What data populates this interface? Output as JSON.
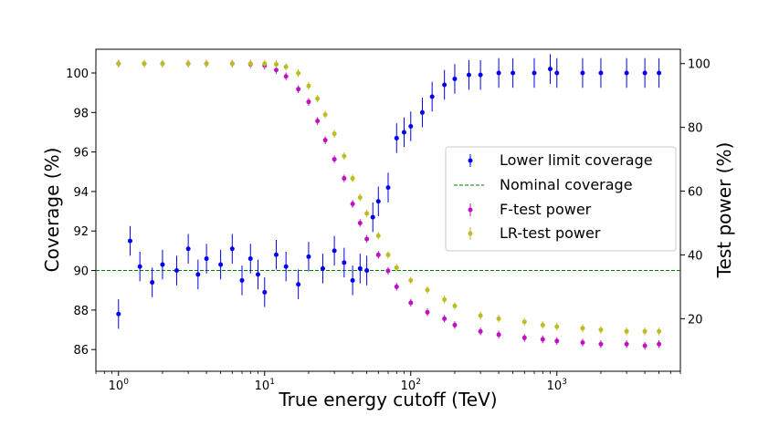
{
  "chart_data": {
    "type": "scatter",
    "xlabel": "True energy cutoff (TeV)",
    "ylabel": "Coverage (%)",
    "y2label": "Test power (%)",
    "xscale": "log",
    "xlim": [
      0.7,
      7000
    ],
    "ylim": [
      84.9,
      101.2
    ],
    "y2lim": [
      3.5,
      104.5
    ],
    "x_ticks": [
      {
        "value": 1,
        "base": "10",
        "exp": "0"
      },
      {
        "value": 10,
        "base": "10",
        "exp": "1"
      },
      {
        "value": 100,
        "base": "10",
        "exp": "2"
      },
      {
        "value": 1000,
        "base": "10",
        "exp": "3"
      }
    ],
    "y_ticks": [
      86,
      88,
      90,
      92,
      94,
      96,
      98,
      100
    ],
    "y_tick_labels": [
      "86",
      "88",
      "90",
      "92",
      "94",
      "96",
      "98",
      "100"
    ],
    "y2_ticks": [
      20,
      40,
      60,
      80,
      100
    ],
    "y2_tick_labels": [
      "20",
      "40",
      "60",
      "80",
      "100"
    ],
    "nominal_coverage": 90,
    "legend": [
      {
        "key": "coverage",
        "label": "Lower limit coverage"
      },
      {
        "key": "nominal",
        "label": "Nominal coverage"
      },
      {
        "key": "ftest",
        "label": "F-test power"
      },
      {
        "key": "lrtest",
        "label": "LR-test power"
      }
    ],
    "legend_position": "center-right",
    "series": [
      {
        "name": "Lower limit coverage",
        "axis": "left",
        "color": "#0000ee",
        "err": 0.75,
        "x": [
          1.0,
          1.2,
          1.4,
          1.7,
          2.0,
          2.5,
          3.0,
          3.5,
          4.0,
          5.0,
          6.0,
          7.0,
          8.0,
          9.0,
          10,
          12,
          14,
          17,
          20,
          25,
          30,
          35,
          40,
          45,
          50,
          55,
          60,
          70,
          80,
          90,
          100,
          120,
          140,
          170,
          200,
          250,
          300,
          400,
          500,
          700,
          900,
          1000,
          1500,
          2000,
          3000,
          4000,
          5000
        ],
        "y": [
          87.8,
          91.5,
          90.2,
          89.4,
          90.3,
          90.0,
          91.1,
          89.8,
          90.6,
          90.3,
          91.1,
          89.5,
          90.6,
          89.8,
          88.9,
          90.8,
          90.2,
          89.3,
          90.7,
          90.1,
          91.0,
          90.4,
          89.5,
          90.1,
          90.0,
          92.7,
          93.5,
          94.2,
          96.7,
          97.0,
          97.3,
          98.0,
          98.8,
          99.4,
          99.7,
          99.9,
          99.9,
          100.0,
          100.0,
          100.0,
          100.2,
          100.0,
          100.0,
          100.0,
          100.0,
          100.0,
          100.0
        ]
      },
      {
        "name": "F-test power",
        "axis": "right",
        "color": "#c010c0",
        "err": 1.2,
        "x": [
          1.0,
          1.5,
          2.0,
          3.0,
          4.0,
          6.0,
          8.0,
          10,
          12,
          14,
          17,
          20,
          23,
          26,
          30,
          35,
          40,
          45,
          50,
          60,
          70,
          80,
          100,
          130,
          170,
          200,
          300,
          400,
          600,
          800,
          1000,
          1500,
          2000,
          3000,
          4000,
          5000
        ],
        "y": [
          100,
          100,
          100,
          100,
          100,
          100,
          99.8,
          99.4,
          98,
          96,
          92,
          88,
          82,
          76,
          70,
          64,
          56,
          50,
          45,
          40,
          35,
          30,
          25,
          22,
          20,
          18,
          16,
          15,
          14,
          13.5,
          13,
          12.5,
          12,
          12,
          11.5,
          12
        ]
      },
      {
        "name": "LR-test power",
        "axis": "right",
        "color": "#bcbd22",
        "err": 1.2,
        "x": [
          1.0,
          1.5,
          2.0,
          3.0,
          4.0,
          6.0,
          8.0,
          10,
          12,
          14,
          17,
          20,
          23,
          26,
          30,
          35,
          40,
          45,
          50,
          60,
          70,
          80,
          100,
          130,
          170,
          200,
          300,
          400,
          600,
          800,
          1000,
          1500,
          2000,
          3000,
          4000,
          5000
        ],
        "y": [
          100,
          100,
          100,
          100,
          100,
          100,
          100,
          100,
          99.8,
          99,
          97,
          93,
          89,
          84,
          78,
          71,
          64,
          58,
          53,
          46,
          40,
          36,
          32,
          29,
          26,
          24,
          21,
          20,
          19,
          18,
          17.5,
          17,
          16.5,
          16,
          16,
          16
        ]
      }
    ]
  }
}
